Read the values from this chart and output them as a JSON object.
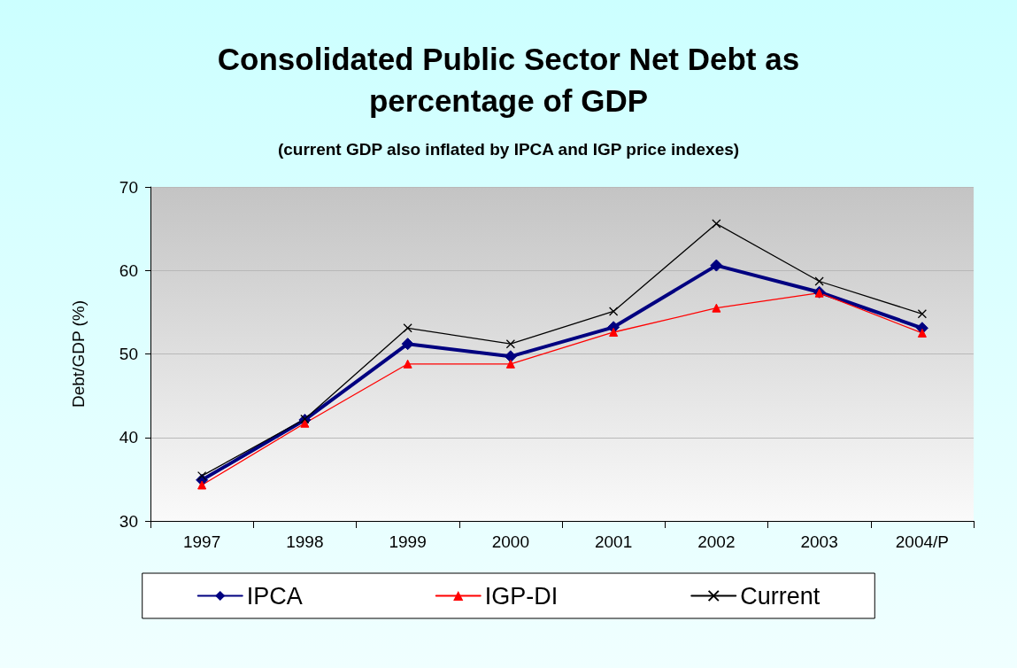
{
  "chart_data": {
    "type": "line",
    "title": "Consolidated Public Sector Net Debt as\npercentage of GDP",
    "subtitle": "(current GDP also inflated by IPCA and IGP price indexes)",
    "ylabel": "Debt/GDP (%)",
    "categories": [
      "1997",
      "1998",
      "1999",
      "2000",
      "2001",
      "2002",
      "2003",
      "2004/P"
    ],
    "series": [
      {
        "name": "IPCA",
        "color": "#000080",
        "marker": "diamond",
        "values": [
          34.9,
          42.1,
          51.2,
          49.7,
          53.2,
          60.6,
          57.4,
          53.1
        ]
      },
      {
        "name": "IGP-DI",
        "color": "#ff0000",
        "marker": "triangle",
        "values": [
          34.3,
          41.7,
          48.8,
          48.8,
          52.6,
          55.5,
          57.3,
          52.5
        ]
      },
      {
        "name": "Current",
        "color": "#000000",
        "marker": "cross",
        "values": [
          35.4,
          42.2,
          53.1,
          51.2,
          55.1,
          65.6,
          58.7,
          54.8
        ]
      }
    ],
    "ylim": [
      30,
      70
    ],
    "yticks": [
      30,
      40,
      50,
      60,
      70
    ],
    "grid": "y",
    "legend": "bottom",
    "line_style": "solid"
  }
}
